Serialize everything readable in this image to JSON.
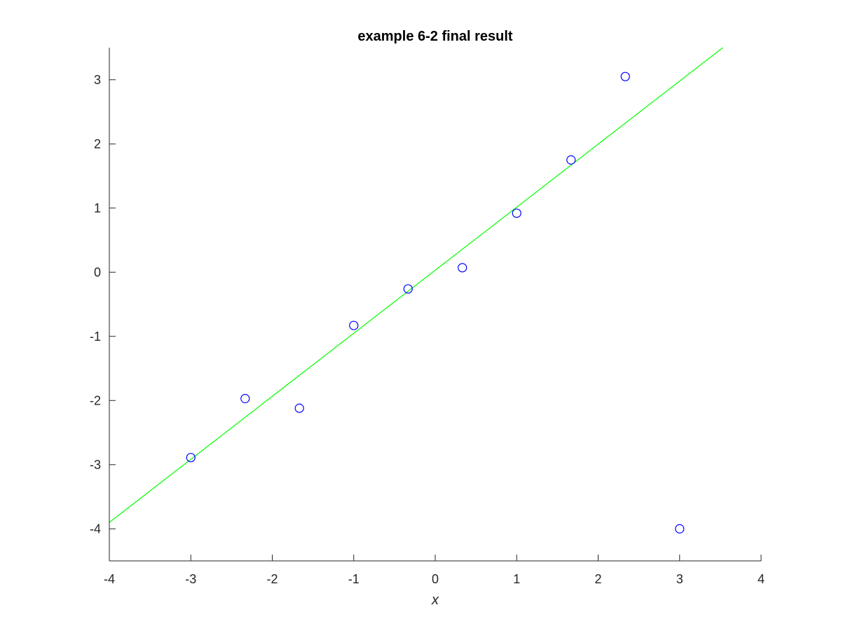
{
  "chart_data": {
    "type": "scatter",
    "title": "example 6-2 final result",
    "xlabel": "x",
    "ylabel": "",
    "xlim": [
      -4,
      4
    ],
    "ylim": [
      -4.5,
      3.5
    ],
    "xticks": [
      -4,
      -3,
      -2,
      -1,
      0,
      1,
      2,
      3,
      4
    ],
    "yticks": [
      -4,
      -3,
      -2,
      -1,
      0,
      1,
      2,
      3
    ],
    "grid": false,
    "colors": {
      "points": "#0000ff",
      "fit_line": "#00ff00",
      "axis": "#262626",
      "title": "#000000"
    },
    "series": [
      {
        "type": "scatter",
        "marker": "circle-open",
        "x": [
          -3,
          -2.333,
          -1.667,
          -1,
          -0.333,
          0.333,
          1,
          1.667,
          2.333,
          3
        ],
        "y": [
          -2.89,
          -1.97,
          -2.12,
          -0.83,
          -0.26,
          0.07,
          0.92,
          1.75,
          3.05,
          -4.0
        ]
      },
      {
        "type": "line",
        "x": [
          -4,
          3.53
        ],
        "y": [
          -3.9,
          3.5
        ]
      }
    ]
  }
}
